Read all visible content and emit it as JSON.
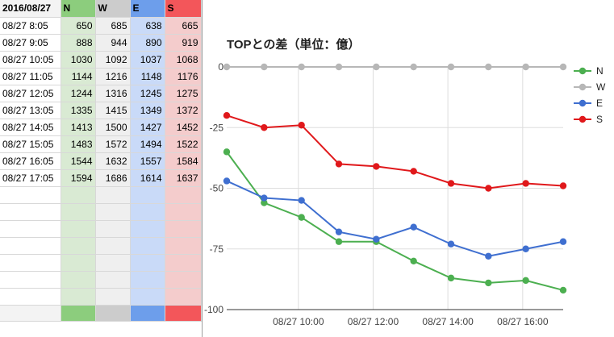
{
  "table": {
    "headers": [
      "2016/08/27",
      "N",
      "W",
      "E",
      "S"
    ],
    "rows": [
      [
        "08/27 8:05",
        "650",
        "685",
        "638",
        "665"
      ],
      [
        "08/27 9:05",
        "888",
        "944",
        "890",
        "919"
      ],
      [
        "08/27 10:05",
        "1030",
        "1092",
        "1037",
        "1068"
      ],
      [
        "08/27 11:05",
        "1144",
        "1216",
        "1148",
        "1176"
      ],
      [
        "08/27 12:05",
        "1244",
        "1316",
        "1245",
        "1275"
      ],
      [
        "08/27 13:05",
        "1335",
        "1415",
        "1349",
        "1372"
      ],
      [
        "08/27 14:05",
        "1413",
        "1500",
        "1427",
        "1452"
      ],
      [
        "08/27 15:05",
        "1483",
        "1572",
        "1494",
        "1522"
      ],
      [
        "08/27 16:05",
        "1544",
        "1632",
        "1557",
        "1584"
      ],
      [
        "08/27 17:05",
        "1594",
        "1686",
        "1614",
        "1637"
      ]
    ]
  },
  "colors": {
    "N": "#4caf50",
    "W": "#b7b7b7",
    "E": "#3f6fd0",
    "S": "#e0181b"
  },
  "chart_data": {
    "type": "line",
    "title": "TOPとの差（単位：億）",
    "x": [
      "08/27 8:05",
      "08/27 9:05",
      "08/27 10:05",
      "08/27 11:05",
      "08/27 12:05",
      "08/27 13:05",
      "08/27 14:05",
      "08/27 15:05",
      "08/27 16:05",
      "08/27 17:05"
    ],
    "x_tick_labels": [
      "08/27 10:00",
      "08/27 12:00",
      "08/27 14:00",
      "08/27 16:00"
    ],
    "y_ticks": [
      "0",
      "-25",
      "-50",
      "-75",
      "-100"
    ],
    "ylim": [
      -100,
      0
    ],
    "grid": true,
    "legend": "right",
    "series": [
      {
        "name": "N",
        "values": [
          -35,
          -56,
          -62,
          -72,
          -72,
          -80,
          -87,
          -89,
          -88,
          -92
        ]
      },
      {
        "name": "W",
        "values": [
          0,
          0,
          0,
          0,
          0,
          0,
          0,
          0,
          0,
          0
        ]
      },
      {
        "name": "E",
        "values": [
          -47,
          -54,
          -55,
          -68,
          -71,
          -66,
          -73,
          -78,
          -75,
          -72
        ]
      },
      {
        "name": "S",
        "values": [
          -20,
          -25,
          -24,
          -40,
          -41,
          -43,
          -48,
          -50,
          -48,
          -49
        ]
      }
    ]
  }
}
